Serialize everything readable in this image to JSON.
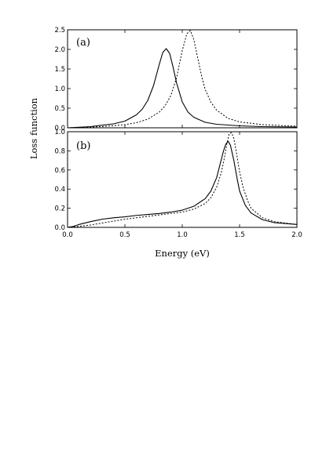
{
  "chart_data": [
    {
      "type": "line",
      "panel_label": "(a)",
      "xlabel": "",
      "ylabel": "Loss function",
      "xlim": [
        0.0,
        2.0
      ],
      "ylim": [
        0.0,
        2.5
      ],
      "x_ticks": [
        0.0,
        0.5,
        1.0,
        1.5,
        2.0
      ],
      "y_ticks": [
        "0.0",
        "0.5",
        "1.0",
        "1.5",
        "2.0",
        "2.5"
      ],
      "x_tick_labels_shown": false,
      "series": [
        {
          "style": "solid",
          "x": [
            0.0,
            0.2,
            0.4,
            0.5,
            0.6,
            0.65,
            0.7,
            0.75,
            0.8,
            0.83,
            0.86,
            0.89,
            0.92,
            0.95,
            1.0,
            1.05,
            1.1,
            1.2,
            1.3,
            1.5,
            1.7,
            2.0
          ],
          "y": [
            0.0,
            0.03,
            0.1,
            0.17,
            0.33,
            0.47,
            0.7,
            1.08,
            1.62,
            1.92,
            2.02,
            1.9,
            1.55,
            1.15,
            0.66,
            0.4,
            0.27,
            0.14,
            0.09,
            0.05,
            0.03,
            0.02
          ]
        },
        {
          "style": "dotted",
          "x": [
            0.0,
            0.3,
            0.5,
            0.6,
            0.7,
            0.8,
            0.85,
            0.9,
            0.95,
            1.0,
            1.04,
            1.07,
            1.1,
            1.13,
            1.17,
            1.2,
            1.25,
            1.3,
            1.4,
            1.5,
            1.7,
            2.0
          ],
          "y": [
            0.0,
            0.03,
            0.08,
            0.13,
            0.22,
            0.4,
            0.56,
            0.82,
            1.27,
            1.97,
            2.4,
            2.48,
            2.26,
            1.85,
            1.3,
            0.98,
            0.65,
            0.45,
            0.24,
            0.15,
            0.08,
            0.04
          ]
        }
      ]
    },
    {
      "type": "line",
      "panel_label": "(b)",
      "xlabel": "Energy (eV)",
      "ylabel": "Loss function",
      "xlim": [
        0.0,
        2.0
      ],
      "ylim": [
        0.0,
        1.0
      ],
      "x_ticks": [
        "0.0",
        "0.5",
        "1.0",
        "1.5",
        "2.0"
      ],
      "y_ticks": [
        "0.0",
        "0.2",
        "0.4",
        "0.6",
        "0.8",
        "1.0"
      ],
      "x_tick_labels_shown": true,
      "series": [
        {
          "style": "solid",
          "x": [
            0.0,
            0.05,
            0.1,
            0.2,
            0.3,
            0.4,
            0.5,
            0.6,
            0.7,
            0.8,
            0.9,
            1.0,
            1.1,
            1.2,
            1.25,
            1.3,
            1.33,
            1.36,
            1.38,
            1.4,
            1.42,
            1.45,
            1.48,
            1.5,
            1.55,
            1.6,
            1.7,
            1.8,
            2.0
          ],
          "y": [
            0.0,
            0.01,
            0.03,
            0.06,
            0.085,
            0.1,
            0.11,
            0.125,
            0.135,
            0.145,
            0.16,
            0.18,
            0.22,
            0.3,
            0.38,
            0.52,
            0.66,
            0.8,
            0.87,
            0.9,
            0.86,
            0.7,
            0.5,
            0.38,
            0.23,
            0.15,
            0.08,
            0.05,
            0.03
          ]
        },
        {
          "style": "dotted",
          "x": [
            0.0,
            0.1,
            0.2,
            0.3,
            0.4,
            0.5,
            0.6,
            0.7,
            0.8,
            0.9,
            1.0,
            1.1,
            1.2,
            1.25,
            1.3,
            1.34,
            1.37,
            1.39,
            1.41,
            1.43,
            1.45,
            1.47,
            1.5,
            1.53,
            1.57,
            1.6,
            1.7,
            1.8,
            2.0
          ],
          "y": [
            0.0,
            0.01,
            0.025,
            0.045,
            0.065,
            0.085,
            0.1,
            0.115,
            0.13,
            0.145,
            0.16,
            0.19,
            0.25,
            0.31,
            0.42,
            0.57,
            0.74,
            0.88,
            0.98,
            0.99,
            0.93,
            0.8,
            0.58,
            0.42,
            0.28,
            0.2,
            0.1,
            0.06,
            0.03
          ]
        }
      ]
    }
  ]
}
